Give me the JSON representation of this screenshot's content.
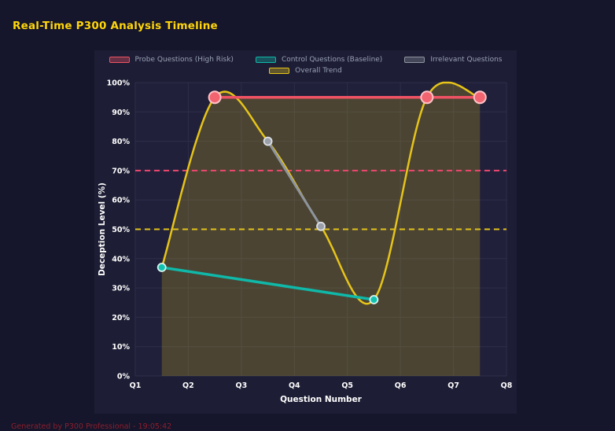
{
  "page": {
    "title": "Real-Time P300 Analysis Timeline",
    "footer": "Generated by P300 Professional - 19:05:42"
  },
  "colors": {
    "background": "#15152b",
    "panel": "#1d1d35",
    "plot_background": "#20203a",
    "grid": "#2e2e4a",
    "title": "#ffd60a",
    "axis_text": "#ffffff",
    "legend_text": "#99a1b4",
    "footer_text": "#8c1f2c",
    "probe": "#ee5263",
    "control": "#0fb8a8",
    "irrelevant": "#8e949e",
    "trend": "#e6c419",
    "threshold_high": "#ef476f",
    "threshold_mid": "#e3c21b"
  },
  "chart_data": {
    "type": "line",
    "title": "Real-Time P300 Analysis Timeline",
    "xlabel": "Question Number",
    "ylabel": "Deception Level (%)",
    "x_tick_labels": [
      "Q1",
      "Q2",
      "Q3",
      "Q4",
      "Q5",
      "Q6",
      "Q7",
      "Q8"
    ],
    "x_tick_values": [
      1,
      2,
      3,
      4,
      5,
      6,
      7,
      8
    ],
    "y_tick_labels": [
      "0%",
      "10%",
      "20%",
      "30%",
      "40%",
      "50%",
      "60%",
      "70%",
      "80%",
      "90%",
      "100%"
    ],
    "y_tick_values": [
      0,
      10,
      20,
      30,
      40,
      50,
      60,
      70,
      80,
      90,
      100
    ],
    "xlim": [
      1,
      8
    ],
    "ylim": [
      0,
      100
    ],
    "grid": true,
    "legend_position": "top",
    "series": [
      {
        "name": "Probe Questions (High Risk)",
        "x": [
          2.5,
          6.5,
          7.5
        ],
        "y": [
          95,
          95,
          95
        ],
        "color": "#ee5263",
        "marker_fill": "#f2646f",
        "marker_stroke": "#ffc2c7",
        "marker_stroke_width": 2,
        "marker_radius": 7.5,
        "line_width": 3.5,
        "smooth": false
      },
      {
        "name": "Control Questions (Baseline)",
        "x": [
          1.5,
          5.5
        ],
        "y": [
          37,
          26
        ],
        "color": "#0fb8a8",
        "marker_fill": "#12c2b0",
        "marker_stroke": "#d7f6f1",
        "marker_stroke_width": 1.8,
        "marker_radius": 5,
        "line_width": 3.5,
        "smooth": false
      },
      {
        "name": "Irrelevant Questions",
        "x": [
          3.5,
          4.5
        ],
        "y": [
          80,
          51
        ],
        "color": "#8e949e",
        "marker_fill": "#9aa0aa",
        "marker_stroke": "#dde0e5",
        "marker_stroke_width": 1.8,
        "marker_radius": 5,
        "line_width": 3,
        "smooth": false
      },
      {
        "name": "Overall Trend",
        "x": [
          1.5,
          2.5,
          3.5,
          4.5,
          5.5,
          6.5,
          7.5
        ],
        "y": [
          37,
          95,
          80,
          51,
          26,
          95,
          95
        ],
        "color": "#e6c419",
        "marker_radius": 0,
        "line_width": 2.5,
        "smooth": true
      }
    ],
    "threshold_lines": [
      {
        "value": 70,
        "color": "#ef476f",
        "style": "dashed"
      },
      {
        "value": 50,
        "color": "#e3c21b",
        "style": "dashed"
      }
    ],
    "shaded_region": {
      "x_start": 1.5,
      "x_end": 7.5,
      "flat_from": 2.5,
      "base_level": 95,
      "fill": "rgba(227,194,27,0.22)"
    }
  }
}
